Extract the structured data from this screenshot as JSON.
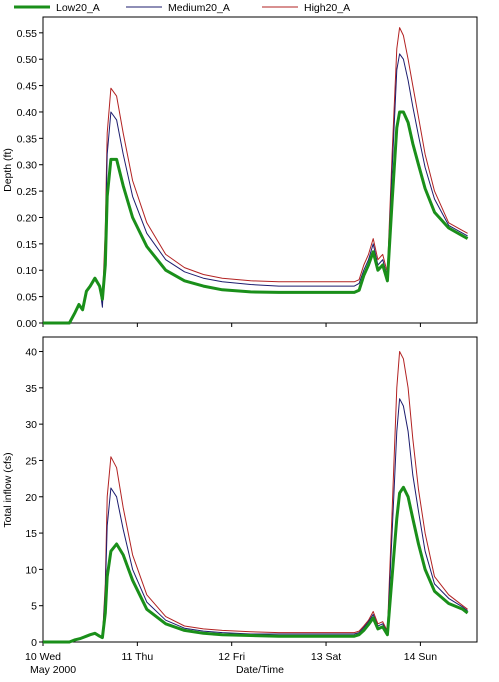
{
  "chart_data": {
    "type": "line",
    "legend": {
      "position": "top-left",
      "entries": [
        {
          "name": "Low20_A",
          "color": "#1a8f1a",
          "weight": "heavy"
        },
        {
          "name": "Medium20_A",
          "color": "#1c1c6e",
          "weight": "thin"
        },
        {
          "name": "High20_A",
          "color": "#b22222",
          "weight": "thin"
        }
      ]
    },
    "x_axis": {
      "label": "Date/Time",
      "range_days": [
        10.0,
        14.6
      ],
      "ticks": [
        {
          "x": 10,
          "label": "10 Wed"
        },
        {
          "x": 11,
          "label": "11 Thu"
        },
        {
          "x": 12,
          "label": "12 Fri"
        },
        {
          "x": 13,
          "label": "13 Sat"
        },
        {
          "x": 14,
          "label": "14 Sun"
        }
      ],
      "sublabel": "May 2000"
    },
    "panels": [
      {
        "ylabel": "Depth (ft)",
        "ylim": [
          0,
          0.58
        ],
        "yticks": [
          "0.00",
          "0.05",
          "0.10",
          "0.15",
          "0.20",
          "0.25",
          "0.30",
          "0.35",
          "0.40",
          "0.45",
          "0.50",
          "0.55"
        ],
        "ytick_values": [
          0,
          0.05,
          0.1,
          0.15,
          0.2,
          0.25,
          0.3,
          0.35,
          0.4,
          0.45,
          0.5,
          0.55
        ],
        "series": [
          {
            "name": "High20_A",
            "x": [
              10.0,
              10.28,
              10.34,
              10.38,
              10.42,
              10.46,
              10.5,
              10.55,
              10.6,
              10.63,
              10.66,
              10.68,
              10.72,
              10.78,
              10.85,
              10.95,
              11.1,
              11.3,
              11.5,
              11.7,
              11.9,
              12.2,
              12.5,
              12.8,
              13.0,
              13.1,
              13.2,
              13.3,
              13.35,
              13.4,
              13.45,
              13.5,
              13.55,
              13.6,
              13.65,
              13.7,
              13.75,
              13.78,
              13.82,
              13.87,
              13.92,
              13.98,
              14.05,
              14.15,
              14.3,
              14.45,
              14.5
            ],
            "y": [
              0,
              0,
              0.02,
              0.035,
              0.025,
              0.06,
              0.07,
              0.085,
              0.07,
              0.035,
              0.18,
              0.36,
              0.445,
              0.43,
              0.36,
              0.27,
              0.19,
              0.13,
              0.105,
              0.092,
              0.085,
              0.08,
              0.078,
              0.078,
              0.078,
              0.078,
              0.078,
              0.078,
              0.082,
              0.11,
              0.13,
              0.16,
              0.12,
              0.13,
              0.095,
              0.32,
              0.52,
              0.56,
              0.545,
              0.5,
              0.45,
              0.39,
              0.32,
              0.25,
              0.19,
              0.175,
              0.17
            ]
          },
          {
            "name": "Medium20_A",
            "x": [
              10.0,
              10.28,
              10.34,
              10.38,
              10.42,
              10.46,
              10.5,
              10.55,
              10.6,
              10.63,
              10.66,
              10.68,
              10.72,
              10.78,
              10.85,
              10.95,
              11.1,
              11.3,
              11.5,
              11.7,
              11.9,
              12.2,
              12.5,
              12.8,
              13.0,
              13.1,
              13.2,
              13.3,
              13.35,
              13.4,
              13.45,
              13.5,
              13.55,
              13.6,
              13.65,
              13.7,
              13.75,
              13.78,
              13.82,
              13.87,
              13.92,
              13.98,
              14.05,
              14.15,
              14.3,
              14.45,
              14.5
            ],
            "y": [
              0,
              0,
              0.02,
              0.035,
              0.025,
              0.06,
              0.07,
              0.085,
              0.07,
              0.03,
              0.15,
              0.32,
              0.4,
              0.385,
              0.32,
              0.24,
              0.17,
              0.12,
              0.097,
              0.085,
              0.078,
              0.073,
              0.07,
              0.07,
              0.07,
              0.07,
              0.07,
              0.07,
              0.075,
              0.1,
              0.12,
              0.15,
              0.11,
              0.12,
              0.088,
              0.29,
              0.48,
              0.51,
              0.5,
              0.46,
              0.41,
              0.355,
              0.295,
              0.235,
              0.185,
              0.17,
              0.165
            ]
          },
          {
            "name": "Low20_A",
            "x": [
              10.0,
              10.28,
              10.34,
              10.38,
              10.42,
              10.46,
              10.5,
              10.55,
              10.6,
              10.63,
              10.66,
              10.68,
              10.72,
              10.78,
              10.85,
              10.95,
              11.1,
              11.3,
              11.5,
              11.7,
              11.9,
              12.2,
              12.5,
              12.8,
              13.0,
              13.1,
              13.2,
              13.3,
              13.35,
              13.4,
              13.45,
              13.5,
              13.55,
              13.6,
              13.65,
              13.7,
              13.75,
              13.78,
              13.82,
              13.87,
              13.92,
              13.98,
              14.05,
              14.15,
              14.3,
              14.45,
              14.5
            ],
            "y": [
              0,
              0,
              0.02,
              0.035,
              0.025,
              0.06,
              0.07,
              0.085,
              0.07,
              0.045,
              0.11,
              0.24,
              0.31,
              0.31,
              0.26,
              0.2,
              0.145,
              0.1,
              0.08,
              0.07,
              0.063,
              0.059,
              0.058,
              0.058,
              0.058,
              0.058,
              0.058,
              0.058,
              0.062,
              0.09,
              0.11,
              0.135,
              0.1,
              0.11,
              0.08,
              0.23,
              0.37,
              0.4,
              0.4,
              0.38,
              0.34,
              0.3,
              0.255,
              0.21,
              0.18,
              0.165,
              0.16
            ]
          }
        ]
      },
      {
        "ylabel": "Total inflow (cfs)",
        "ylim": [
          0,
          42
        ],
        "yticks": [
          "0",
          "5",
          "10",
          "15",
          "20",
          "25",
          "30",
          "35",
          "40"
        ],
        "ytick_values": [
          0,
          5,
          10,
          15,
          20,
          25,
          30,
          35,
          40
        ],
        "series": [
          {
            "name": "High20_A",
            "x": [
              10.0,
              10.28,
              10.34,
              10.4,
              10.46,
              10.5,
              10.55,
              10.6,
              10.63,
              10.66,
              10.68,
              10.72,
              10.78,
              10.85,
              10.95,
              11.1,
              11.3,
              11.5,
              11.7,
              11.9,
              12.2,
              12.5,
              12.8,
              13.0,
              13.1,
              13.2,
              13.3,
              13.35,
              13.4,
              13.45,
              13.5,
              13.55,
              13.6,
              13.65,
              13.7,
              13.75,
              13.78,
              13.82,
              13.87,
              13.92,
              13.98,
              14.05,
              14.15,
              14.3,
              14.45,
              14.5
            ],
            "y": [
              0,
              0,
              0.3,
              0.5,
              0.8,
              1.0,
              1.2,
              0.8,
              0.5,
              8,
              20,
              25.5,
              24,
              18.5,
              12,
              6.5,
              3.5,
              2.2,
              1.8,
              1.6,
              1.4,
              1.3,
              1.3,
              1.3,
              1.3,
              1.3,
              1.3,
              1.5,
              2.2,
              3.0,
              4.2,
              2.5,
              2.8,
              1.5,
              18,
              35,
              40,
              39,
              35,
              28,
              21,
              15,
              9,
              6.5,
              5,
              4.5
            ]
          },
          {
            "name": "Medium20_A",
            "x": [
              10.0,
              10.28,
              10.34,
              10.4,
              10.46,
              10.5,
              10.55,
              10.6,
              10.63,
              10.66,
              10.68,
              10.72,
              10.78,
              10.85,
              10.95,
              11.1,
              11.3,
              11.5,
              11.7,
              11.9,
              12.2,
              12.5,
              12.8,
              13.0,
              13.1,
              13.2,
              13.3,
              13.35,
              13.4,
              13.45,
              13.5,
              13.55,
              13.6,
              13.65,
              13.7,
              13.75,
              13.78,
              13.82,
              13.87,
              13.92,
              13.98,
              14.05,
              14.15,
              14.3,
              14.45,
              14.5
            ],
            "y": [
              0,
              0,
              0.3,
              0.5,
              0.8,
              1.0,
              1.2,
              0.8,
              0.5,
              7,
              16,
              21.2,
              20,
              15.5,
              10,
              5.5,
              3.0,
              1.9,
              1.5,
              1.3,
              1.1,
              1.1,
              1.1,
              1.1,
              1.1,
              1.1,
              1.1,
              1.3,
              2.0,
              2.8,
              3.8,
              2.2,
              2.5,
              1.3,
              15,
              29,
              33.5,
              32.5,
              29,
              23,
              18,
              12.5,
              8,
              6,
              4.8,
              4.3
            ]
          },
          {
            "name": "Low20_A",
            "x": [
              10.0,
              10.28,
              10.34,
              10.4,
              10.46,
              10.5,
              10.55,
              10.6,
              10.63,
              10.66,
              10.68,
              10.72,
              10.78,
              10.85,
              10.95,
              11.1,
              11.3,
              11.5,
              11.7,
              11.9,
              12.2,
              12.5,
              12.8,
              13.0,
              13.1,
              13.2,
              13.3,
              13.35,
              13.4,
              13.45,
              13.5,
              13.55,
              13.6,
              13.65,
              13.7,
              13.75,
              13.78,
              13.82,
              13.87,
              13.92,
              13.98,
              14.05,
              14.15,
              14.3,
              14.45,
              14.5
            ],
            "y": [
              0,
              0,
              0.3,
              0.5,
              0.8,
              1.0,
              1.2,
              0.8,
              0.6,
              4,
              9,
              12.5,
              13.5,
              12,
              8.5,
              4.5,
              2.5,
              1.6,
              1.2,
              1.0,
              0.9,
              0.8,
              0.8,
              0.8,
              0.8,
              0.8,
              0.8,
              1.0,
              1.6,
              2.4,
              3.3,
              1.8,
              2.1,
              1.0,
              9,
              17,
              20.5,
              21.3,
              20,
              17,
              13.5,
              10,
              7,
              5.3,
              4.5,
              4.0
            ]
          }
        ]
      }
    ]
  }
}
